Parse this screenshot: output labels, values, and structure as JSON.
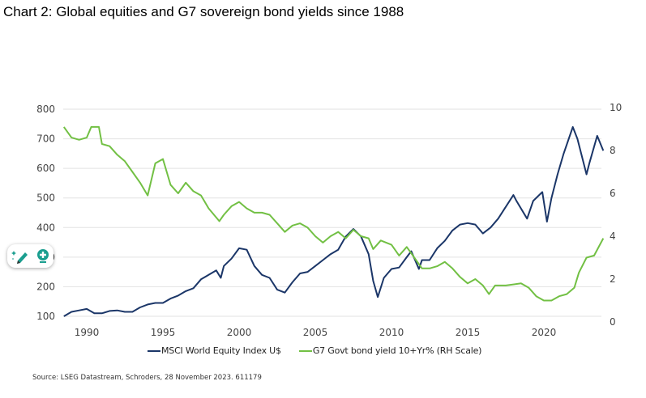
{
  "title": "Chart 2: Global equities and G7 sovereign bond yields since 1988",
  "source": "Source: LSEG Datastream, Schroders, 28 November 2023. 611179",
  "widget": {
    "icons": [
      "sparkle-pencil-icon",
      "lightbulb-icon"
    ],
    "accent": "#1a9e8f"
  },
  "chart_data": {
    "type": "line",
    "title": "Chart 2: Global equities and G7 sovereign bond yields since 1988",
    "grid": true,
    "legend_position": "bottom",
    "x_ticks": [
      "1990",
      "1995",
      "2000",
      "2005",
      "2010",
      "2015",
      "2020"
    ],
    "y_left": {
      "ticks": [
        "100",
        "200",
        "300",
        "400",
        "500",
        "600",
        "700",
        "800"
      ],
      "range": [
        100,
        800
      ]
    },
    "y_right": {
      "ticks": [
        "0",
        "2",
        "4",
        "6",
        "8",
        "10"
      ],
      "range": [
        0,
        10
      ]
    },
    "series": [
      {
        "name": "MSCI World Equity Index U$",
        "axis": "left",
        "color": "#1b3668",
        "x": [
          1988.5,
          1989,
          1989.5,
          1990,
          1990.5,
          1991,
          1991.5,
          1992,
          1992.5,
          1993,
          1993.5,
          1994,
          1994.5,
          1995,
          1995.5,
          1996,
          1996.5,
          1997,
          1997.5,
          1998,
          1998.5,
          1998.8,
          1999,
          1999.5,
          2000,
          2000.5,
          2001,
          2001.5,
          2002,
          2002.5,
          2003,
          2003.5,
          2004,
          2004.5,
          2005,
          2005.5,
          2006,
          2006.5,
          2007,
          2007.5,
          2008,
          2008.5,
          2008.8,
          2009.1,
          2009.5,
          2010,
          2010.5,
          2011,
          2011.3,
          2011.8,
          2012,
          2012.5,
          2013,
          2013.5,
          2014,
          2014.5,
          2015,
          2015.5,
          2016,
          2016.5,
          2017,
          2017.5,
          2018,
          2018.2,
          2018.9,
          2019.3,
          2019.9,
          2020.2,
          2020.5,
          2020.9,
          2021.3,
          2021.9,
          2022.2,
          2022.8,
          2023,
          2023.5,
          2023.9
        ],
        "y": [
          100,
          115,
          120,
          125,
          110,
          110,
          118,
          120,
          115,
          115,
          130,
          140,
          145,
          145,
          160,
          170,
          185,
          195,
          225,
          240,
          255,
          230,
          270,
          295,
          330,
          325,
          270,
          240,
          230,
          190,
          180,
          215,
          245,
          250,
          270,
          290,
          310,
          325,
          370,
          395,
          370,
          310,
          220,
          165,
          230,
          260,
          265,
          300,
          320,
          260,
          290,
          290,
          330,
          355,
          390,
          410,
          415,
          410,
          380,
          400,
          430,
          470,
          510,
          490,
          430,
          490,
          520,
          420,
          500,
          580,
          650,
          740,
          700,
          580,
          620,
          710,
          660
        ]
      },
      {
        "name": "G7 Govt bond yield 10+Yr% (RH Scale)",
        "axis": "right",
        "color": "#72c044",
        "x": [
          1988.5,
          1989,
          1989.5,
          1990,
          1990.3,
          1990.8,
          1991,
          1991.5,
          1992,
          1992.5,
          1993,
          1993.5,
          1994,
          1994.5,
          1995,
          1995.5,
          1996,
          1996.5,
          1997,
          1997.5,
          1998,
          1998.7,
          1999,
          1999.5,
          2000,
          2000.5,
          2001,
          2001.5,
          2002,
          2002.5,
          2003,
          2003.5,
          2004,
          2004.5,
          2005,
          2005.5,
          2006,
          2006.5,
          2007,
          2007.5,
          2008,
          2008.5,
          2008.8,
          2009.3,
          2010,
          2010.5,
          2011,
          2011.5,
          2012,
          2012.5,
          2013,
          2013.5,
          2014,
          2014.5,
          2015,
          2015.5,
          2016,
          2016.4,
          2016.8,
          2017.5,
          2018.5,
          2019,
          2019.5,
          2020,
          2020.5,
          2021,
          2021.5,
          2022,
          2022.3,
          2022.8,
          2023.3,
          2023.9
        ],
        "y": [
          9.1,
          8.6,
          8.5,
          8.6,
          9.1,
          9.1,
          8.3,
          8.2,
          7.8,
          7.5,
          7.0,
          6.5,
          5.9,
          7.4,
          7.6,
          6.4,
          6.0,
          6.5,
          6.1,
          5.9,
          5.3,
          4.7,
          5.0,
          5.4,
          5.6,
          5.3,
          5.1,
          5.1,
          5.0,
          4.6,
          4.2,
          4.5,
          4.6,
          4.4,
          4.0,
          3.7,
          4.0,
          4.2,
          3.9,
          4.3,
          4.0,
          3.9,
          3.4,
          3.8,
          3.6,
          3.1,
          3.5,
          3.0,
          2.5,
          2.5,
          2.6,
          2.8,
          2.5,
          2.1,
          1.8,
          2.0,
          1.7,
          1.3,
          1.7,
          1.7,
          1.8,
          1.6,
          1.2,
          1.0,
          1.0,
          1.2,
          1.3,
          1.6,
          2.3,
          3.0,
          3.1,
          3.9
        ]
      }
    ]
  }
}
